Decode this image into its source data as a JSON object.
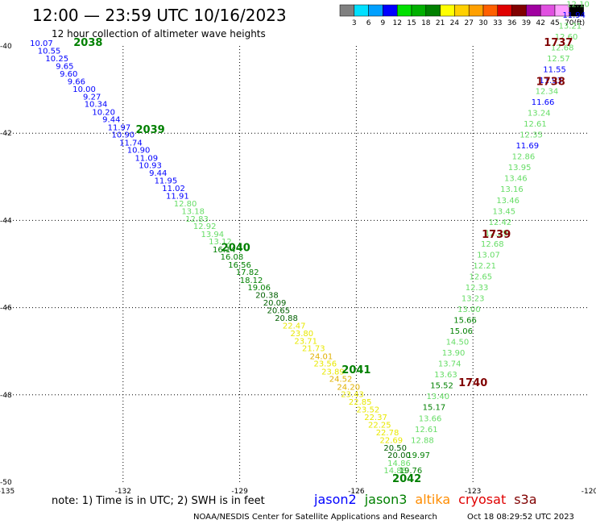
{
  "chart_data": {
    "type": "scatter",
    "title": "12:00 — 23:59 UTC 10/16/2023",
    "subtitle": "12 hour collection of altimeter wave heights",
    "xlabel": "",
    "ylabel": "",
    "xlim": [
      -135,
      -120
    ],
    "ylim": [
      -50,
      -40
    ],
    "x_ticks": [
      "-135",
      "-132",
      "-129",
      "-126",
      "-123",
      "-120"
    ],
    "y_ticks": [
      "-40",
      "-42",
      "-44",
      "-46",
      "-48",
      "-50"
    ],
    "grid": true,
    "colorbar": {
      "values": [
        "3",
        "6",
        "9",
        "12",
        "15",
        "18",
        "21",
        "24",
        "27",
        "30",
        "33",
        "36",
        "39",
        "42",
        "45",
        "70"
      ],
      "unit": "(ft)",
      "colors": [
        "#808080",
        "#00e0ff",
        "#00a0ff",
        "#0000ff",
        "#00e000",
        "#00b000",
        "#008000",
        "#ffff00",
        "#ffd000",
        "#ffa000",
        "#ff6000",
        "#e00000",
        "#800000",
        "#a000a0",
        "#e050e0",
        "#ffa0ff",
        "#000000"
      ]
    },
    "tracks": [
      {
        "label": "2038",
        "label_pos": [
          -132.9,
          -40.0
        ],
        "label_color": "#008000"
      },
      {
        "label": "2039",
        "label_pos": [
          -131.3,
          -42.0
        ],
        "label_color": "#008000"
      },
      {
        "label": "2040",
        "label_pos": [
          -129.1,
          -44.7
        ],
        "label_color": "#008000"
      },
      {
        "label": "2041",
        "label_pos": [
          -126.0,
          -47.5
        ],
        "label_color": "#008000"
      },
      {
        "label": "2042",
        "label_pos": [
          -124.7,
          -50.0
        ],
        "label_color": "#008000"
      },
      {
        "label": "1737",
        "label_pos": [
          -120.8,
          -40.0
        ],
        "label_color": "#800000"
      },
      {
        "label": "1738",
        "label_pos": [
          -121.0,
          -40.9
        ],
        "label_color": "#800000"
      },
      {
        "label": "1739",
        "label_pos": [
          -122.4,
          -44.4
        ],
        "label_color": "#800000"
      },
      {
        "label": "1740",
        "label_pos": [
          -123.0,
          -47.8
        ],
        "label_color": "#800000"
      }
    ],
    "points": [
      {
        "x": -134.1,
        "y": -40.0,
        "v": "10.07",
        "c": "#0000ff"
      },
      {
        "x": -133.9,
        "y": -40.18,
        "v": "10.55",
        "c": "#0000ff"
      },
      {
        "x": -133.7,
        "y": -40.35,
        "v": "10.25",
        "c": "#0000ff"
      },
      {
        "x": -133.5,
        "y": -40.53,
        "v": "9.65",
        "c": "#0000ff"
      },
      {
        "x": -133.4,
        "y": -40.7,
        "v": "9.60",
        "c": "#0000ff"
      },
      {
        "x": -133.2,
        "y": -40.88,
        "v": "9.66",
        "c": "#0000ff"
      },
      {
        "x": -133.0,
        "y": -41.05,
        "v": "10.00",
        "c": "#0000ff"
      },
      {
        "x": -132.8,
        "y": -41.23,
        "v": "9.27",
        "c": "#0000ff"
      },
      {
        "x": -132.7,
        "y": -41.4,
        "v": "10.34",
        "c": "#0000ff"
      },
      {
        "x": -132.5,
        "y": -41.58,
        "v": "10.20",
        "c": "#0000ff"
      },
      {
        "x": -132.3,
        "y": -41.75,
        "v": "9.44",
        "c": "#0000ff"
      },
      {
        "x": -132.1,
        "y": -41.93,
        "v": "11.97",
        "c": "#0000ff"
      },
      {
        "x": -132.0,
        "y": -42.1,
        "v": "10.90",
        "c": "#0000ff"
      },
      {
        "x": -131.8,
        "y": -42.28,
        "v": "11.74",
        "c": "#0000ff"
      },
      {
        "x": -131.6,
        "y": -42.45,
        "v": "10.90",
        "c": "#0000ff"
      },
      {
        "x": -131.4,
        "y": -42.63,
        "v": "11.09",
        "c": "#0000ff"
      },
      {
        "x": -131.3,
        "y": -42.8,
        "v": "10.93",
        "c": "#0000ff"
      },
      {
        "x": -131.1,
        "y": -42.98,
        "v": "9.44",
        "c": "#0000ff"
      },
      {
        "x": -130.9,
        "y": -43.15,
        "v": "11.95",
        "c": "#0000ff"
      },
      {
        "x": -130.7,
        "y": -43.33,
        "v": "11.02",
        "c": "#0000ff"
      },
      {
        "x": -130.6,
        "y": -43.5,
        "v": "11.91",
        "c": "#0000ff"
      },
      {
        "x": -130.4,
        "y": -43.68,
        "v": "12.80",
        "c": "#66dd66"
      },
      {
        "x": -130.2,
        "y": -43.85,
        "v": "13.18",
        "c": "#66dd66"
      },
      {
        "x": -130.1,
        "y": -44.03,
        "v": "12.83",
        "c": "#66dd66"
      },
      {
        "x": -129.9,
        "y": -44.2,
        "v": "12.92",
        "c": "#66dd66"
      },
      {
        "x": -129.7,
        "y": -44.38,
        "v": "13.94",
        "c": "#66dd66"
      },
      {
        "x": -129.5,
        "y": -44.55,
        "v": "13.12",
        "c": "#66dd66"
      },
      {
        "x": -129.4,
        "y": -44.73,
        "v": "16.14",
        "c": "#008000"
      },
      {
        "x": -129.2,
        "y": -44.9,
        "v": "16.08",
        "c": "#008000"
      },
      {
        "x": -129.0,
        "y": -45.08,
        "v": "16.56",
        "c": "#008000"
      },
      {
        "x": -128.8,
        "y": -45.25,
        "v": "17.82",
        "c": "#008000"
      },
      {
        "x": -128.7,
        "y": -45.43,
        "v": "18.12",
        "c": "#008000"
      },
      {
        "x": -128.5,
        "y": -45.6,
        "v": "19.06",
        "c": "#008000"
      },
      {
        "x": -128.3,
        "y": -45.78,
        "v": "20.38",
        "c": "#006000"
      },
      {
        "x": -128.1,
        "y": -45.95,
        "v": "20.09",
        "c": "#006000"
      },
      {
        "x": -128.0,
        "y": -46.13,
        "v": "20.65",
        "c": "#006000"
      },
      {
        "x": -127.8,
        "y": -46.3,
        "v": "20.88",
        "c": "#006000"
      },
      {
        "x": -127.6,
        "y": -46.48,
        "v": "22.47",
        "c": "#e8e800"
      },
      {
        "x": -127.4,
        "y": -46.65,
        "v": "23.80",
        "c": "#e8e800"
      },
      {
        "x": -127.3,
        "y": -46.83,
        "v": "23.71",
        "c": "#e8e800"
      },
      {
        "x": -127.1,
        "y": -47.0,
        "v": "21.73",
        "c": "#e8e800"
      },
      {
        "x": -126.9,
        "y": -47.18,
        "v": "24.01",
        "c": "#e0b000"
      },
      {
        "x": -126.8,
        "y": -47.35,
        "v": "23.56",
        "c": "#e8e800"
      },
      {
        "x": -126.6,
        "y": -47.53,
        "v": "23.89",
        "c": "#e8e800"
      },
      {
        "x": -126.4,
        "y": -47.7,
        "v": "24.52",
        "c": "#e0b000"
      },
      {
        "x": -126.2,
        "y": -47.88,
        "v": "24.20",
        "c": "#e0b000"
      },
      {
        "x": -126.1,
        "y": -48.05,
        "v": "23.43",
        "c": "#e8e800"
      },
      {
        "x": -125.9,
        "y": -48.23,
        "v": "22.85",
        "c": "#e8e800"
      },
      {
        "x": -125.7,
        "y": -48.4,
        "v": "23.52",
        "c": "#e8e800"
      },
      {
        "x": -125.5,
        "y": -48.58,
        "v": "22.37",
        "c": "#e8e800"
      },
      {
        "x": -125.4,
        "y": -48.75,
        "v": "22.25",
        "c": "#e8e800"
      },
      {
        "x": -125.2,
        "y": -48.93,
        "v": "22.78",
        "c": "#e8e800"
      },
      {
        "x": -125.1,
        "y": -49.1,
        "v": "22.69",
        "c": "#e8e800"
      },
      {
        "x": -125.0,
        "y": -49.28,
        "v": "20.50",
        "c": "#006000"
      },
      {
        "x": -124.9,
        "y": -49.45,
        "v": "20.00",
        "c": "#006000"
      },
      {
        "x": -124.9,
        "y": -49.63,
        "v": "14.86",
        "c": "#66dd66"
      },
      {
        "x": -125.0,
        "y": -49.8,
        "v": "14.88",
        "c": "#66dd66"
      },
      {
        "x": -124.6,
        "y": -49.8,
        "v": "19.76",
        "c": "#008000"
      },
      {
        "x": -124.4,
        "y": -49.45,
        "v": "19.97",
        "c": "#008000"
      },
      {
        "x": -124.3,
        "y": -49.1,
        "v": "12.88",
        "c": "#66dd66"
      },
      {
        "x": -124.2,
        "y": -48.85,
        "v": "12.61",
        "c": "#66dd66"
      },
      {
        "x": -124.1,
        "y": -48.6,
        "v": "13.66",
        "c": "#66dd66"
      },
      {
        "x": -124.0,
        "y": -48.35,
        "v": "15.17",
        "c": "#008000"
      },
      {
        "x": -123.9,
        "y": -48.1,
        "v": "13.40",
        "c": "#66dd66"
      },
      {
        "x": -123.8,
        "y": -47.85,
        "v": "15.52",
        "c": "#008000"
      },
      {
        "x": -123.7,
        "y": -47.6,
        "v": "13.63",
        "c": "#66dd66"
      },
      {
        "x": -123.6,
        "y": -47.35,
        "v": "13.74",
        "c": "#66dd66"
      },
      {
        "x": -123.5,
        "y": -47.1,
        "v": "13.90",
        "c": "#66dd66"
      },
      {
        "x": -123.4,
        "y": -46.85,
        "v": "14.50",
        "c": "#66dd66"
      },
      {
        "x": -123.3,
        "y": -46.6,
        "v": "15.06",
        "c": "#008000"
      },
      {
        "x": -123.2,
        "y": -46.35,
        "v": "15.66",
        "c": "#008000"
      },
      {
        "x": -123.1,
        "y": -46.1,
        "v": "13.00",
        "c": "#66dd66"
      },
      {
        "x": -123.0,
        "y": -45.85,
        "v": "13.23",
        "c": "#66dd66"
      },
      {
        "x": -122.9,
        "y": -45.6,
        "v": "12.33",
        "c": "#66dd66"
      },
      {
        "x": -122.8,
        "y": -45.35,
        "v": "12.65",
        "c": "#66dd66"
      },
      {
        "x": -122.7,
        "y": -45.1,
        "v": "12.21",
        "c": "#66dd66"
      },
      {
        "x": -122.6,
        "y": -44.85,
        "v": "13.07",
        "c": "#66dd66"
      },
      {
        "x": -122.5,
        "y": -44.6,
        "v": "12.68",
        "c": "#66dd66"
      },
      {
        "x": -122.4,
        "y": -44.35,
        "v": "12.29",
        "c": "#66dd66"
      },
      {
        "x": -122.3,
        "y": -44.1,
        "v": "12.42",
        "c": "#66dd66"
      },
      {
        "x": -122.2,
        "y": -43.85,
        "v": "13.45",
        "c": "#66dd66"
      },
      {
        "x": -122.1,
        "y": -43.6,
        "v": "13.46",
        "c": "#66dd66"
      },
      {
        "x": -122.0,
        "y": -43.35,
        "v": "13.16",
        "c": "#66dd66"
      },
      {
        "x": -121.9,
        "y": -43.1,
        "v": "13.46",
        "c": "#66dd66"
      },
      {
        "x": -121.8,
        "y": -42.85,
        "v": "13.95",
        "c": "#66dd66"
      },
      {
        "x": -121.7,
        "y": -42.6,
        "v": "12.86",
        "c": "#66dd66"
      },
      {
        "x": -121.6,
        "y": -42.35,
        "v": "11.69",
        "c": "#0000ff"
      },
      {
        "x": -121.5,
        "y": -42.1,
        "v": "12.35",
        "c": "#66dd66"
      },
      {
        "x": -121.4,
        "y": -41.85,
        "v": "12.61",
        "c": "#66dd66"
      },
      {
        "x": -121.3,
        "y": -41.6,
        "v": "13.24",
        "c": "#66dd66"
      },
      {
        "x": -121.2,
        "y": -41.35,
        "v": "11.66",
        "c": "#0000ff"
      },
      {
        "x": -121.1,
        "y": -41.1,
        "v": "12.34",
        "c": "#66dd66"
      },
      {
        "x": -121.0,
        "y": -40.85,
        "v": "11.93",
        "c": "#0000ff"
      },
      {
        "x": -120.9,
        "y": -40.6,
        "v": "11.55",
        "c": "#0000ff"
      },
      {
        "x": -120.8,
        "y": -40.35,
        "v": "12.57",
        "c": "#66dd66"
      },
      {
        "x": -120.7,
        "y": -40.1,
        "v": "12.68",
        "c": "#66dd66"
      },
      {
        "x": -120.6,
        "y": -39.85,
        "v": "12.60",
        "c": "#66dd66"
      },
      {
        "x": -120.5,
        "y": -39.6,
        "v": "13.21",
        "c": "#66dd66"
      },
      {
        "x": -120.4,
        "y": -39.35,
        "v": "11.94",
        "c": "#0000ff"
      },
      {
        "x": -120.3,
        "y": -39.1,
        "v": "12.10",
        "c": "#66dd66"
      }
    ]
  },
  "footer": {
    "note": "note: 1) Time is in UTC; 2) SWH is in feet",
    "satellites": [
      {
        "name": "jason2",
        "color": "#0000ff"
      },
      {
        "name": "jason3",
        "color": "#008000"
      },
      {
        "name": "altika",
        "color": "#ff8c00"
      },
      {
        "name": "cryosat",
        "color": "#e00000"
      },
      {
        "name": "s3a",
        "color": "#800000"
      }
    ],
    "credit": "NOAA/NESDIS Center for Satellite Applications and Research",
    "timestamp": "Oct 18 08:29:52 UTC 2023"
  }
}
